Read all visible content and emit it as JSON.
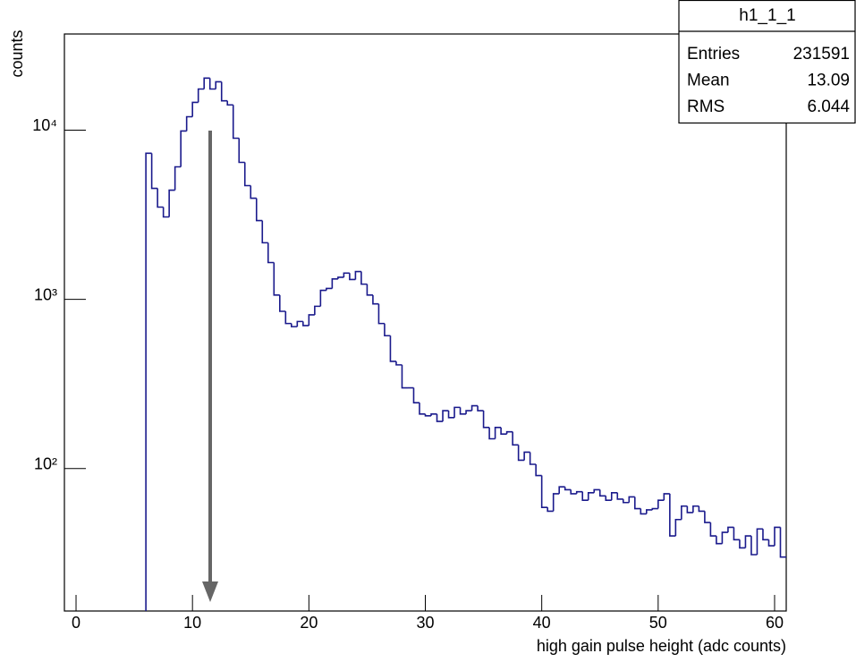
{
  "chart_data": {
    "type": "histogram",
    "x_label": "high gain pulse height (adc counts)",
    "y_label": "counts",
    "color": "#1a1a8c",
    "logy": true,
    "xlim": [
      -1,
      61
    ],
    "ylim": [
      14.4,
      37000
    ],
    "xticks": [
      0,
      10,
      20,
      30,
      40,
      50,
      60
    ],
    "yticks": [
      {
        "value": 100,
        "label": "10²"
      },
      {
        "value": 1000,
        "label": "10³"
      },
      {
        "value": 10000,
        "label": "10⁴"
      }
    ],
    "bins": [
      6,
      6.5,
      7,
      7.5,
      8,
      8.5,
      9,
      9.5,
      10,
      10.5,
      11,
      11.5,
      12,
      12.5,
      13,
      13.5,
      14,
      14.5,
      15,
      15.5,
      16,
      16.5,
      17,
      17.5,
      18,
      18.5,
      19,
      19.5,
      20,
      20.5,
      21,
      21.5,
      22,
      22.5,
      23,
      23.5,
      24,
      24.5,
      25,
      25.5,
      26,
      26.5,
      27,
      27.5,
      28,
      28.5,
      29,
      29.5,
      30,
      30.5,
      31,
      31.5,
      32,
      32.5,
      33,
      33.5,
      34,
      34.5,
      35,
      35.5,
      36,
      36.5,
      37,
      37.5,
      38,
      38.5,
      39,
      39.5,
      40,
      40.5,
      41,
      41.5,
      42,
      42.5,
      43,
      43.5,
      44,
      44.5,
      45,
      45.5,
      46,
      46.5,
      47,
      47.5,
      48,
      48.5,
      49,
      49.5,
      50,
      50.5,
      51,
      51.5,
      52,
      52.5,
      53,
      53.5,
      54,
      54.5,
      55,
      55.5,
      56,
      56.5,
      57,
      57.5,
      58,
      58.5,
      59,
      59.5,
      60,
      60.5,
      61
    ],
    "values": [
      7300,
      4530,
      3510,
      3070,
      4420,
      6070,
      9880,
      12000,
      14600,
      17500,
      20300,
      17500,
      19300,
      14900,
      14100,
      8960,
      6450,
      4700,
      3960,
      2920,
      2160,
      1650,
      1060,
      850,
      720,
      690,
      740,
      700,
      810,
      910,
      1130,
      1160,
      1320,
      1350,
      1430,
      1310,
      1460,
      1230,
      1060,
      940,
      720,
      610,
      430,
      410,
      300,
      300,
      245,
      210,
      205,
      210,
      190,
      220,
      200,
      230,
      210,
      220,
      235,
      220,
      175,
      150,
      175,
      160,
      165,
      138,
      112,
      125,
      106,
      91,
      59,
      56,
      71,
      78,
      75,
      71,
      73,
      65,
      72,
      75,
      69,
      65,
      72,
      66,
      63,
      68,
      58,
      54,
      57,
      58,
      65,
      71,
      40,
      50,
      60,
      55,
      60,
      56,
      48,
      40,
      36,
      42,
      45,
      38,
      34,
      40,
      31,
      44,
      38,
      35,
      45,
      30
    ],
    "stats": {
      "title": "h1_1_1",
      "rows": [
        [
          "Entries",
          231591
        ],
        [
          "Mean",
          13.09
        ],
        [
          "RMS",
          6.044
        ]
      ]
    }
  }
}
